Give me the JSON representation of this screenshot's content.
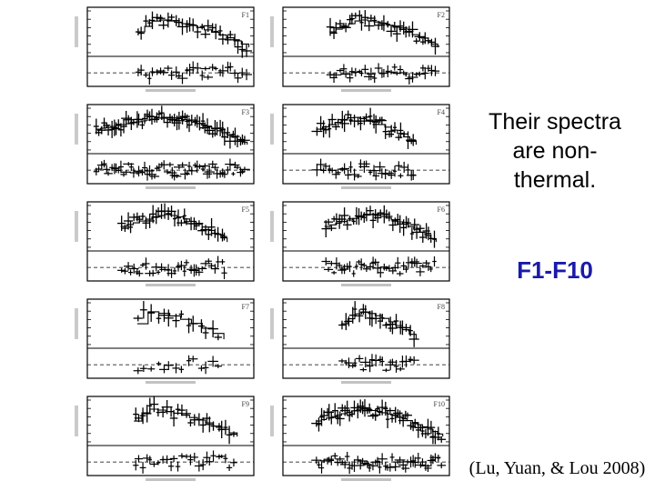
{
  "caption_lines": [
    "Their spectra",
    "are non-",
    "thermal."
  ],
  "range_label": "F1-F10",
  "citation": "(Lu, Yuan, & Lou 2008)",
  "accent_color": "#1a1aa8",
  "panels": [
    {
      "label": "F1"
    },
    {
      "label": "F2"
    },
    {
      "label": "F3"
    },
    {
      "label": "F4"
    },
    {
      "label": "F5"
    },
    {
      "label": "F6"
    },
    {
      "label": "F7"
    },
    {
      "label": "F8"
    },
    {
      "label": "F9"
    },
    {
      "label": "F10"
    }
  ]
}
